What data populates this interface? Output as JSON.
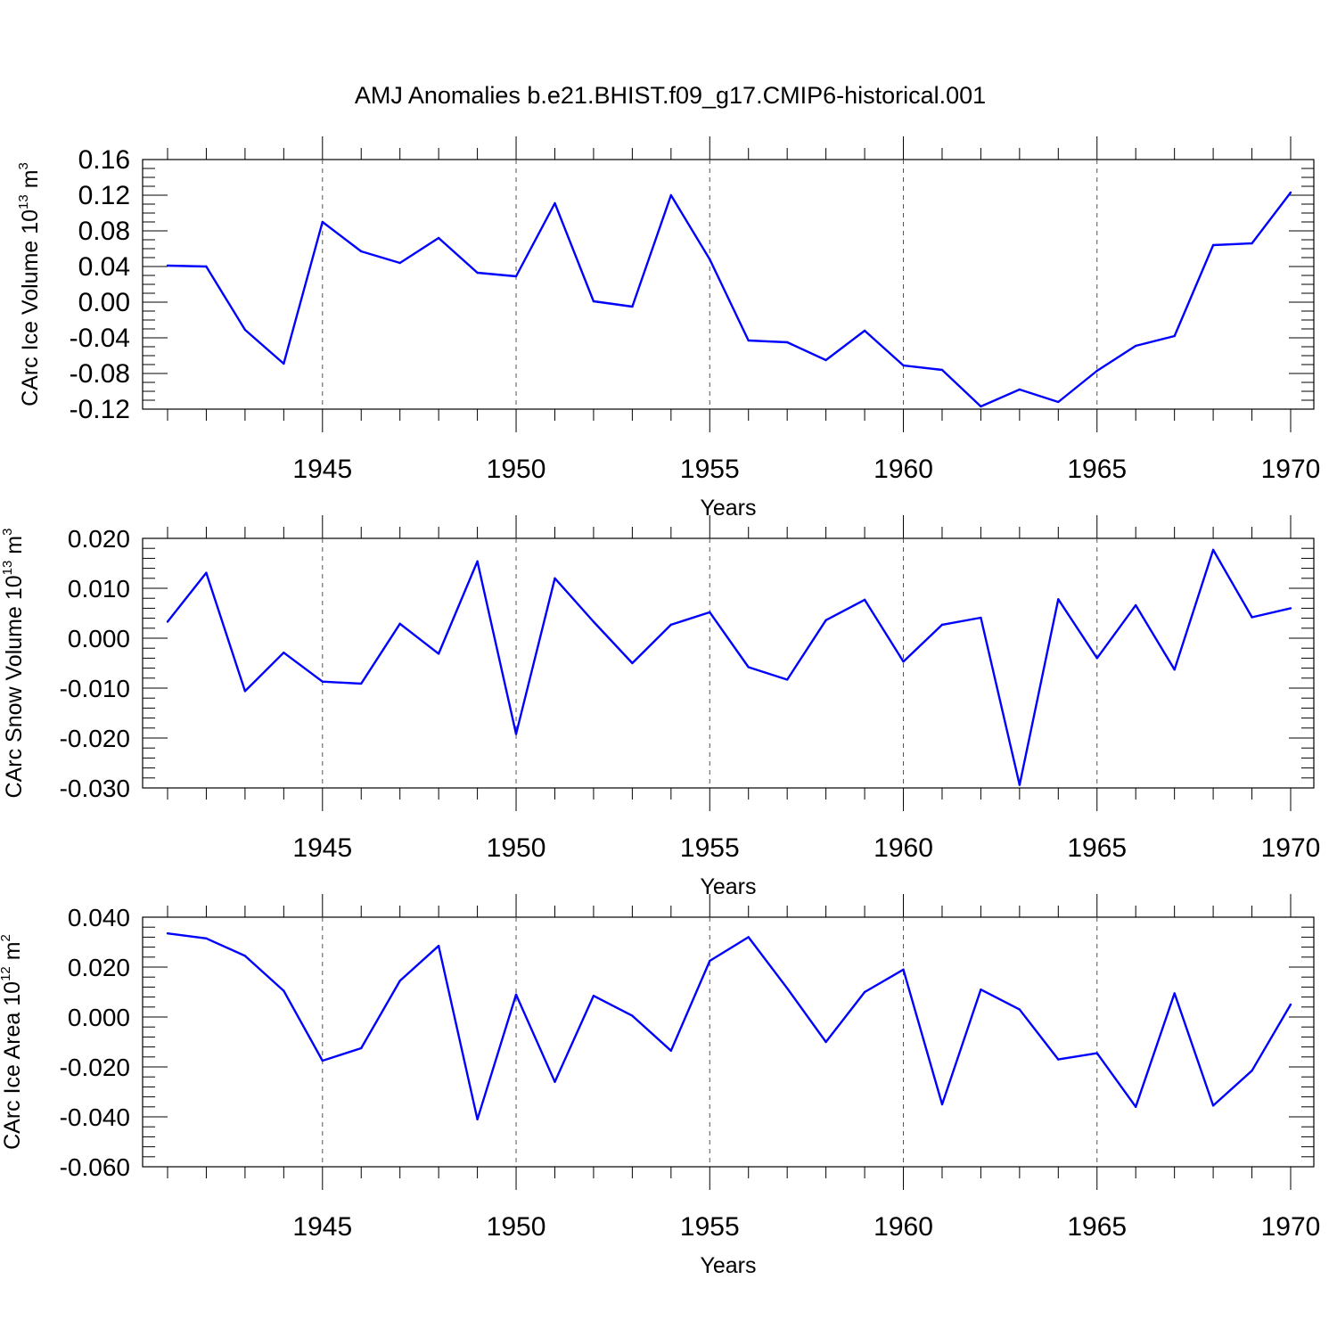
{
  "title": "AMJ Anomalies b.e21.BHIST.f09_g17.CMIP6-historical.001",
  "chart_data": [
    {
      "type": "line",
      "ylabel": {
        "base": "CArc Ice Volume 10",
        "exponent": "13",
        "unit": " m",
        "unit_exponent": "3"
      },
      "xlabel": "Years",
      "xlim": [
        1941,
        1970
      ],
      "ylim": [
        -0.12,
        0.16
      ],
      "y_ticks": [
        -0.12,
        -0.08,
        -0.04,
        0.0,
        0.04,
        0.08,
        0.12,
        0.16
      ],
      "y_tick_labels": [
        "-0.12",
        "-0.08",
        "-0.04",
        "0.00",
        "0.04",
        "0.08",
        "0.12",
        "0.16"
      ],
      "y_minor_step": 0.01,
      "x_ticks": [
        1945,
        1950,
        1955,
        1960,
        1965,
        1970
      ],
      "x_tick_labels": [
        "1945",
        "1950",
        "1955",
        "1960",
        "1965",
        "1970"
      ],
      "x_gridlines": [
        1945,
        1950,
        1955,
        1960,
        1965
      ],
      "grid": "vertical dashed at major x ticks",
      "line_color": "#0000ff",
      "x": [
        1941,
        1942,
        1943,
        1944,
        1945,
        1946,
        1947,
        1948,
        1949,
        1950,
        1951,
        1952,
        1953,
        1954,
        1955,
        1956,
        1957,
        1958,
        1959,
        1960,
        1961,
        1962,
        1963,
        1964,
        1965,
        1966,
        1967,
        1968,
        1969,
        1970
      ],
      "values": [
        0.041,
        0.04,
        -0.031,
        -0.069,
        0.09,
        0.057,
        0.044,
        0.072,
        0.033,
        0.029,
        0.111,
        0.001,
        -0.005,
        0.12,
        0.048,
        -0.043,
        -0.045,
        -0.065,
        -0.032,
        -0.071,
        -0.076,
        -0.117,
        -0.098,
        -0.112,
        -0.077,
        -0.049,
        -0.038,
        0.064,
        0.066,
        0.123
      ]
    },
    {
      "type": "line",
      "ylabel": {
        "base": "CArc Snow Volume 10",
        "exponent": "13",
        "unit": " m",
        "unit_exponent": "3"
      },
      "xlabel": "Years",
      "xlim": [
        1941,
        1970
      ],
      "ylim": [
        -0.03,
        0.02
      ],
      "y_ticks": [
        -0.03,
        -0.02,
        -0.01,
        0.0,
        0.01,
        0.02
      ],
      "y_tick_labels": [
        "-0.030",
        "-0.020",
        "-0.010",
        "0.000",
        "0.010",
        "0.020"
      ],
      "y_minor_step": 0.002,
      "x_ticks": [
        1945,
        1950,
        1955,
        1960,
        1965,
        1970
      ],
      "x_tick_labels": [
        "1945",
        "1950",
        "1955",
        "1960",
        "1965",
        "1970"
      ],
      "x_gridlines": [
        1945,
        1950,
        1955,
        1960,
        1965
      ],
      "grid": "vertical dashed at major x ticks",
      "line_color": "#0000ff",
      "x": [
        1941,
        1942,
        1943,
        1944,
        1945,
        1946,
        1947,
        1948,
        1949,
        1950,
        1951,
        1952,
        1953,
        1954,
        1955,
        1956,
        1957,
        1958,
        1959,
        1960,
        1961,
        1962,
        1963,
        1964,
        1965,
        1966,
        1967,
        1968,
        1969,
        1970
      ],
      "values": [
        0.0033,
        0.0131,
        -0.0106,
        -0.0029,
        -0.0087,
        -0.0091,
        0.0029,
        -0.0031,
        0.0154,
        -0.0192,
        0.012,
        0.0033,
        -0.005,
        0.0027,
        0.0052,
        -0.0058,
        -0.0083,
        0.0036,
        0.0077,
        -0.0047,
        0.0027,
        0.0041,
        -0.0294,
        0.0078,
        -0.004,
        0.0066,
        -0.0063,
        0.0177,
        0.0042,
        0.006
      ]
    },
    {
      "type": "line",
      "ylabel": {
        "base": "CArc Ice Area 10",
        "exponent": "12",
        "unit": " m",
        "unit_exponent": "2"
      },
      "xlabel": "Years",
      "xlim": [
        1941,
        1970
      ],
      "ylim": [
        -0.06,
        0.04
      ],
      "y_ticks": [
        -0.06,
        -0.04,
        -0.02,
        0.0,
        0.02,
        0.04
      ],
      "y_tick_labels": [
        "-0.060",
        "-0.040",
        "-0.020",
        "0.000",
        "0.020",
        "0.040"
      ],
      "y_minor_step": 0.004,
      "x_ticks": [
        1945,
        1950,
        1955,
        1960,
        1965,
        1970
      ],
      "x_tick_labels": [
        "1945",
        "1950",
        "1955",
        "1960",
        "1965",
        "1970"
      ],
      "x_gridlines": [
        1945,
        1950,
        1955,
        1960,
        1965
      ],
      "grid": "vertical dashed at major x ticks",
      "line_color": "#0000ff",
      "x": [
        1941,
        1942,
        1943,
        1944,
        1945,
        1946,
        1947,
        1948,
        1949,
        1950,
        1951,
        1952,
        1953,
        1954,
        1955,
        1956,
        1957,
        1958,
        1959,
        1960,
        1961,
        1962,
        1963,
        1964,
        1965,
        1966,
        1967,
        1968,
        1969,
        1970
      ],
      "values": [
        0.0335,
        0.0315,
        0.0245,
        0.0105,
        -0.0175,
        -0.0125,
        0.0145,
        0.0285,
        -0.041,
        0.009,
        -0.026,
        0.0085,
        0.0005,
        -0.0135,
        0.0225,
        0.032,
        0.0115,
        -0.01,
        0.01,
        0.019,
        -0.035,
        0.011,
        0.003,
        -0.017,
        -0.0145,
        -0.036,
        0.0095,
        -0.0355,
        -0.0215,
        0.005
      ]
    }
  ]
}
